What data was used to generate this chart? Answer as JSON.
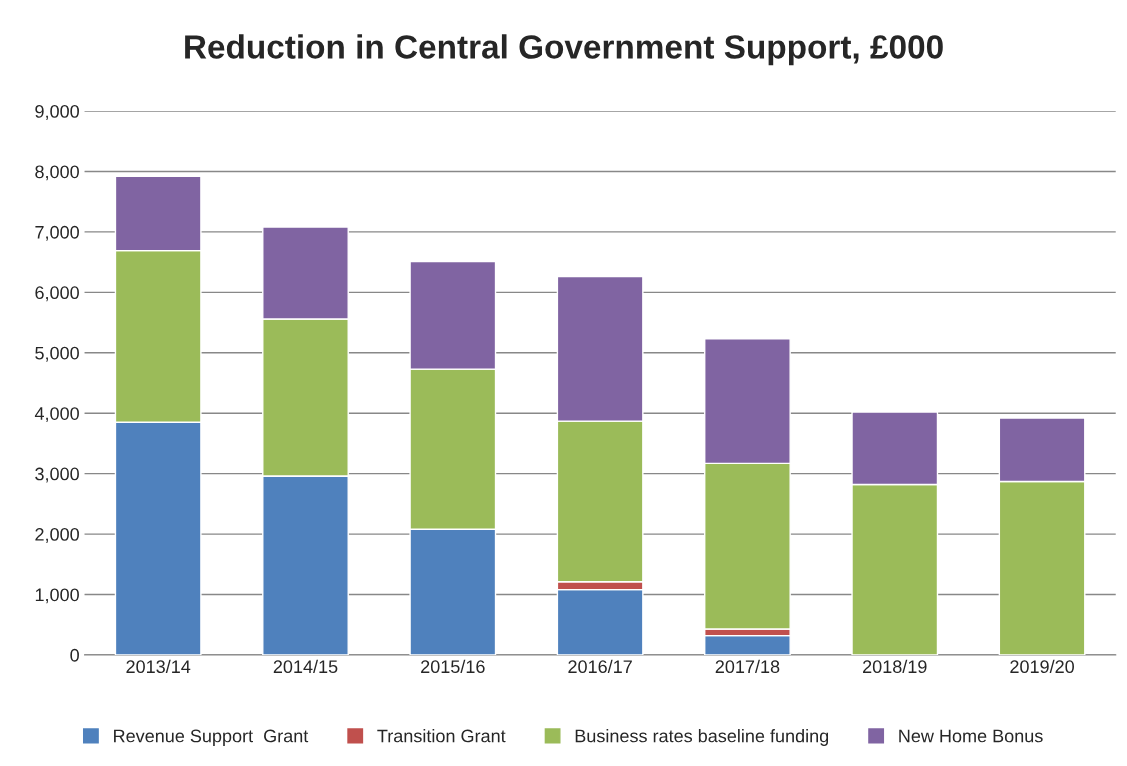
{
  "chart_data": {
    "type": "bar",
    "title": "Reduction in Central Government Support, £000",
    "categories": [
      "2013/14",
      "2014/15",
      "2015/16",
      "2016/17",
      "2017/18",
      "2018/19",
      "2019/20"
    ],
    "stacked": true,
    "series": [
      {
        "name": "Revenue Support  Grant",
        "color": "#4f81bd",
        "values": [
          3850,
          2960,
          2080,
          1080,
          320,
          0,
          0
        ]
      },
      {
        "name": "Transition Grant",
        "color": "#c0504d",
        "values": [
          0,
          0,
          0,
          130,
          110,
          0,
          0
        ]
      },
      {
        "name": "Business rates baseline funding",
        "color": "#9bbb59",
        "values": [
          2840,
          2600,
          2650,
          2660,
          2740,
          2820,
          2870
        ]
      },
      {
        "name": "New Home Bonus",
        "color": "#8064a2",
        "values": [
          1230,
          1520,
          1780,
          2390,
          2060,
          1200,
          1050
        ]
      }
    ],
    "ylim": [
      0,
      9000
    ],
    "yticks": [
      {
        "value": 0,
        "label": "0"
      },
      {
        "value": 1000,
        "label": "1,000"
      },
      {
        "value": 2000,
        "label": "2,000"
      },
      {
        "value": 3000,
        "label": "3,000"
      },
      {
        "value": 4000,
        "label": "4,000"
      },
      {
        "value": 5000,
        "label": "5,000"
      },
      {
        "value": 6000,
        "label": "6,000"
      },
      {
        "value": 7000,
        "label": "7,000"
      },
      {
        "value": 8000,
        "label": "8,000"
      },
      {
        "value": 9000,
        "label": "9,000"
      }
    ],
    "grid": "y",
    "legend": "bottom"
  }
}
